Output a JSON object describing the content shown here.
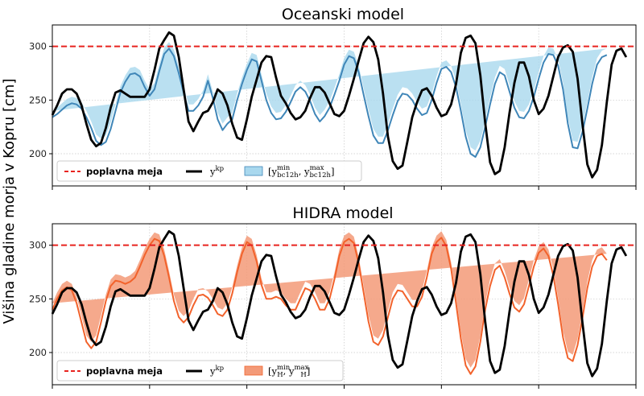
{
  "ylabel": "Višina gladine morja v Kopru [cm]",
  "colors": {
    "flood": "#e8231f",
    "obs": "#000000",
    "ocean_line": "#3f86b8",
    "ocean_band": "#a9d8ee",
    "hidra_line": "#f2622b",
    "hidra_band": "#f39a78"
  },
  "chart_data": [
    {
      "type": "line",
      "title": "Oceanski model",
      "ylim": [
        170,
        320
      ],
      "yticks": [
        200,
        250,
        300
      ],
      "grid": true,
      "legend_placement": "lower-left",
      "flood_level": 300,
      "legend": {
        "flood": "poplavna meja",
        "obs": "y",
        "obs_sup": "kp",
        "band_prefix": "[y",
        "band_min_sup": "min",
        "band_min_sub": "bc12h",
        "band_sep": ", y",
        "band_max_sup": "max",
        "band_max_sub": "bc12h",
        "band_suffix": "]"
      },
      "x": [
        0,
        0.25,
        0.5,
        0.75,
        1,
        1.25,
        1.5,
        1.75,
        2,
        2.25,
        2.5,
        2.75,
        3,
        3.25,
        3.5,
        3.75,
        4,
        4.25,
        4.5,
        4.75,
        5,
        5.25,
        5.5,
        5.75,
        6,
        6.25,
        6.5,
        6.75,
        7,
        7.25,
        7.5,
        7.75,
        8,
        8.25,
        8.5,
        8.75,
        9,
        9.25,
        9.5,
        9.75,
        10,
        10.25,
        10.5,
        10.75,
        11,
        11.25,
        11.5,
        11.75,
        12,
        12.25,
        12.5,
        12.75,
        13,
        13.25,
        13.5,
        13.75,
        14,
        14.25,
        14.5,
        14.75,
        15,
        15.25,
        15.5,
        15.75,
        16,
        16.25,
        16.5,
        16.75,
        17,
        17.25,
        17.5,
        17.75,
        18,
        18.25,
        18.5,
        18.75,
        19,
        19.25,
        19.5,
        19.75,
        20,
        20.25,
        20.5,
        20.75,
        21,
        21.25,
        21.5,
        21.75,
        22,
        22.25,
        22.5,
        22.75,
        23,
        23.25,
        23.5,
        23.75,
        24,
        24.25,
        24.5,
        24.75,
        25,
        25.25,
        25.5,
        25.75,
        26,
        26.25,
        26.5,
        26.75,
        27,
        27.25,
        27.5,
        27.75,
        28,
        28.25,
        28.5,
        28.75,
        29,
        29.25,
        29.5
      ],
      "observed": [
        236,
        245,
        256,
        260,
        260,
        256,
        245,
        228,
        213,
        207,
        210,
        224,
        243,
        257,
        259,
        256,
        253,
        253,
        253,
        253,
        260,
        278,
        298,
        306,
        313,
        310,
        290,
        260,
        230,
        221,
        230,
        238,
        240,
        248,
        260,
        256,
        245,
        228,
        215,
        213,
        232,
        253,
        269,
        285,
        291,
        290,
        271,
        254,
        247,
        238,
        232,
        234,
        240,
        252,
        262,
        262,
        257,
        247,
        237,
        235,
        240,
        254,
        270,
        287,
        303,
        309,
        304,
        288,
        256,
        216,
        193,
        186,
        189,
        211,
        234,
        248,
        259,
        261,
        254,
        243,
        235,
        237,
        246,
        265,
        294,
        308,
        310,
        303,
        273,
        229,
        192,
        181,
        184,
        206,
        238,
        266,
        285,
        285,
        272,
        250,
        237,
        242,
        254,
        272,
        290,
        299,
        301,
        295,
        270,
        228,
        190,
        178,
        185,
        208,
        248,
        283,
        296,
        298,
        290
      ],
      "ocean": {
        "median": [
          234,
          237,
          241,
          245,
          247,
          246,
          242,
          234,
          224,
          212,
          208,
          211,
          223,
          240,
          257,
          267,
          274,
          275,
          272,
          262,
          254,
          260,
          277,
          293,
          298,
          291,
          275,
          257,
          240,
          240,
          245,
          253,
          268,
          252,
          232,
          222,
          228,
          232,
          250,
          265,
          278,
          288,
          286,
          268,
          250,
          238,
          232,
          233,
          239,
          248,
          258,
          262,
          258,
          249,
          237,
          230,
          235,
          243,
          255,
          268,
          283,
          291,
          289,
          276,
          255,
          235,
          217,
          210,
          210,
          222,
          236,
          249,
          256,
          255,
          250,
          242,
          236,
          238,
          250,
          266,
          279,
          281,
          276,
          262,
          240,
          216,
          200,
          197,
          206,
          225,
          246,
          265,
          276,
          273,
          258,
          243,
          234,
          233,
          240,
          253,
          270,
          285,
          293,
          292,
          282,
          260,
          228,
          206,
          205,
          220,
          242,
          265,
          283,
          290,
          292
        ],
        "band_half": 6
      }
    },
    {
      "type": "line",
      "title": "HIDRA model",
      "ylim": [
        170,
        320
      ],
      "yticks": [
        200,
        250,
        300
      ],
      "grid": true,
      "legend_placement": "lower-left",
      "flood_level": 300,
      "legend": {
        "flood": "poplavna meja",
        "obs": "y",
        "obs_sup": "kp",
        "band_prefix": "[y",
        "band_min_sup": "min",
        "band_min_sub": "H",
        "band_sep": ", y",
        "band_max_sup": "max",
        "band_max_sub": "H",
        "band_suffix": "]"
      },
      "x": [
        0,
        0.25,
        0.5,
        0.75,
        1,
        1.25,
        1.5,
        1.75,
        2,
        2.25,
        2.5,
        2.75,
        3,
        3.25,
        3.5,
        3.75,
        4,
        4.25,
        4.5,
        4.75,
        5,
        5.25,
        5.5,
        5.75,
        6,
        6.25,
        6.5,
        6.75,
        7,
        7.25,
        7.5,
        7.75,
        8,
        8.25,
        8.5,
        8.75,
        9,
        9.25,
        9.5,
        9.75,
        10,
        10.25,
        10.5,
        10.75,
        11,
        11.25,
        11.5,
        11.75,
        12,
        12.25,
        12.5,
        12.75,
        13,
        13.25,
        13.5,
        13.75,
        14,
        14.25,
        14.5,
        14.75,
        15,
        15.25,
        15.5,
        15.75,
        16,
        16.25,
        16.5,
        16.75,
        17,
        17.25,
        17.5,
        17.75,
        18,
        18.25,
        18.5,
        18.75,
        19,
        19.25,
        19.5,
        19.75,
        20,
        20.25,
        20.5,
        20.75,
        21,
        21.25,
        21.5,
        21.75,
        22,
        22.25,
        22.5,
        22.75,
        23,
        23.25,
        23.5,
        23.75,
        24,
        24.25,
        24.5,
        24.75,
        25,
        25.25,
        25.5,
        25.75,
        26,
        26.25,
        26.5,
        26.75,
        27,
        27.25,
        27.5,
        27.75,
        28,
        28.25,
        28.5,
        28.75,
        29,
        29.25,
        29.5
      ],
      "observed": [
        236,
        245,
        256,
        260,
        260,
        256,
        245,
        228,
        213,
        207,
        210,
        224,
        243,
        257,
        259,
        256,
        253,
        253,
        253,
        253,
        260,
        278,
        298,
        306,
        313,
        310,
        290,
        260,
        230,
        221,
        230,
        238,
        240,
        248,
        260,
        256,
        245,
        228,
        215,
        213,
        232,
        253,
        269,
        285,
        291,
        290,
        271,
        254,
        247,
        238,
        232,
        234,
        240,
        252,
        262,
        262,
        257,
        247,
        237,
        235,
        240,
        254,
        270,
        287,
        303,
        309,
        304,
        288,
        256,
        216,
        193,
        186,
        189,
        211,
        234,
        248,
        259,
        261,
        254,
        243,
        235,
        237,
        246,
        265,
        294,
        308,
        310,
        303,
        273,
        229,
        192,
        181,
        184,
        206,
        238,
        266,
        285,
        285,
        272,
        250,
        237,
        242,
        254,
        272,
        290,
        299,
        301,
        295,
        270,
        228,
        190,
        178,
        185,
        208,
        248,
        283,
        296,
        298,
        290
      ],
      "hidra": {
        "median": [
          240,
          250,
          258,
          261,
          258,
          246,
          228,
          210,
          204,
          210,
          228,
          248,
          262,
          267,
          266,
          264,
          266,
          270,
          280,
          291,
          300,
          306,
          304,
          290,
          270,
          248,
          233,
          228,
          233,
          244,
          253,
          254,
          251,
          244,
          236,
          234,
          240,
          255,
          275,
          292,
          303,
          300,
          285,
          263,
          250,
          250,
          252,
          250,
          244,
          240,
          240,
          250,
          260,
          258,
          250,
          240,
          240,
          250,
          268,
          290,
          303,
          306,
          302,
          283,
          256,
          229,
          210,
          207,
          215,
          233,
          250,
          258,
          257,
          250,
          243,
          243,
          252,
          270,
          292,
          303,
          307,
          299,
          278,
          246,
          213,
          188,
          180,
          187,
          210,
          240,
          262,
          277,
          281,
          270,
          255,
          242,
          238,
          245,
          262,
          280,
          293,
          297,
          290,
          272,
          245,
          214,
          195,
          192,
          207,
          232,
          260,
          280,
          290,
          292,
          286
        ],
        "band_half": 6
      }
    }
  ]
}
